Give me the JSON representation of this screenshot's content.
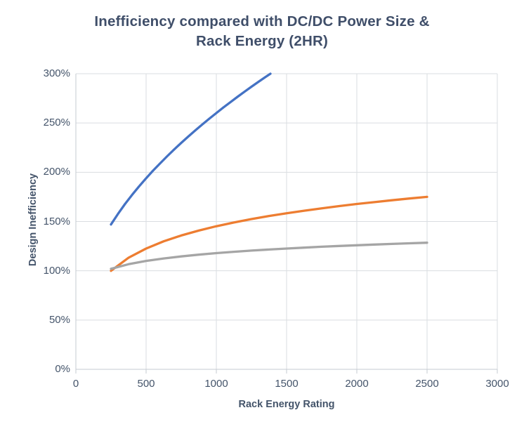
{
  "title": {
    "line1": "Inefficiency compared with DC/DC Power Size &",
    "line2": "Rack Energy (2HR)"
  },
  "axes": {
    "x": {
      "title": "Rack Energy Rating",
      "tick_labels": [
        "0",
        "500",
        "1000",
        "1500",
        "2000",
        "2500",
        "3000"
      ],
      "tick_values": [
        0,
        500,
        1000,
        1500,
        2000,
        2500,
        3000
      ]
    },
    "y": {
      "title": "Design Inefficiency",
      "tick_labels": [
        "0%",
        "50%",
        "100%",
        "150%",
        "200%",
        "250%",
        "300%"
      ],
      "tick_values": [
        0,
        50,
        100,
        150,
        200,
        250,
        300
      ]
    }
  },
  "colors": {
    "title_text": "#3F4E69",
    "axis_text": "#44546A",
    "gridline": "#DADDE1",
    "axis_line": "#C6CBD2",
    "series_blue": "#4472C4",
    "series_orange": "#ED7D31",
    "series_gray": "#A5A5A5",
    "background": "#FFFFFF"
  },
  "chart_data": {
    "type": "line",
    "title": "Inefficiency compared with DC/DC Power Size & Rack Energy (2HR)",
    "xlabel": "Rack Energy Rating",
    "ylabel": "Design Inefficiency",
    "xlim": [
      0,
      3000
    ],
    "ylim_percent": [
      0,
      300
    ],
    "x_ticks": [
      0,
      500,
      1000,
      1500,
      2000,
      2500,
      3000
    ],
    "y_ticks_percent": [
      0,
      50,
      100,
      150,
      200,
      250,
      300
    ],
    "grid": true,
    "legend": "none",
    "series": [
      {
        "name": "blue-series",
        "color": "#4472C4",
        "points_x_percent": [
          [
            250,
            147
          ],
          [
            300,
            157.8
          ],
          [
            350,
            167.8
          ],
          [
            400,
            177
          ],
          [
            450,
            185.7
          ],
          [
            500,
            193.9
          ],
          [
            550,
            201.7
          ],
          [
            600,
            209.1
          ],
          [
            650,
            216.3
          ],
          [
            700,
            223.2
          ],
          [
            750,
            229.8
          ],
          [
            800,
            236.2
          ],
          [
            850,
            242.4
          ],
          [
            900,
            248.5
          ],
          [
            950,
            254.4
          ],
          [
            1000,
            260.1
          ],
          [
            1050,
            265.7
          ],
          [
            1100,
            271.1
          ],
          [
            1150,
            276.5
          ],
          [
            1200,
            281.7
          ],
          [
            1250,
            286.8
          ],
          [
            1300,
            291.8
          ],
          [
            1350,
            296.7
          ],
          [
            1385,
            300
          ]
        ]
      },
      {
        "name": "orange-series",
        "color": "#ED7D31",
        "points_x_percent": [
          [
            250,
            100
          ],
          [
            375,
            113.2
          ],
          [
            500,
            122.6
          ],
          [
            625,
            129.9
          ],
          [
            750,
            135.8
          ],
          [
            875,
            140.8
          ],
          [
            1000,
            145.2
          ],
          [
            1125,
            149
          ],
          [
            1250,
            152.5
          ],
          [
            1375,
            155.6
          ],
          [
            1500,
            158.4
          ],
          [
            1625,
            161
          ],
          [
            1750,
            163.4
          ],
          [
            1875,
            165.7
          ],
          [
            2000,
            167.8
          ],
          [
            2125,
            169.7
          ],
          [
            2250,
            171.6
          ],
          [
            2375,
            173.4
          ],
          [
            2500,
            175
          ]
        ]
      },
      {
        "name": "gray-series",
        "color": "#A5A5A5",
        "points_x_percent": [
          [
            250,
            102
          ],
          [
            375,
            106.7
          ],
          [
            500,
            110
          ],
          [
            625,
            112.5
          ],
          [
            750,
            114.6
          ],
          [
            875,
            116.4
          ],
          [
            1000,
            117.9
          ],
          [
            1125,
            119.3
          ],
          [
            1250,
            120.5
          ],
          [
            1375,
            121.6
          ],
          [
            1500,
            122.6
          ],
          [
            1625,
            123.5
          ],
          [
            1750,
            124.4
          ],
          [
            1875,
            125.2
          ],
          [
            2000,
            125.9
          ],
          [
            2125,
            126.6
          ],
          [
            2250,
            127.3
          ],
          [
            2375,
            127.9
          ],
          [
            2500,
            128.5
          ]
        ]
      }
    ]
  }
}
